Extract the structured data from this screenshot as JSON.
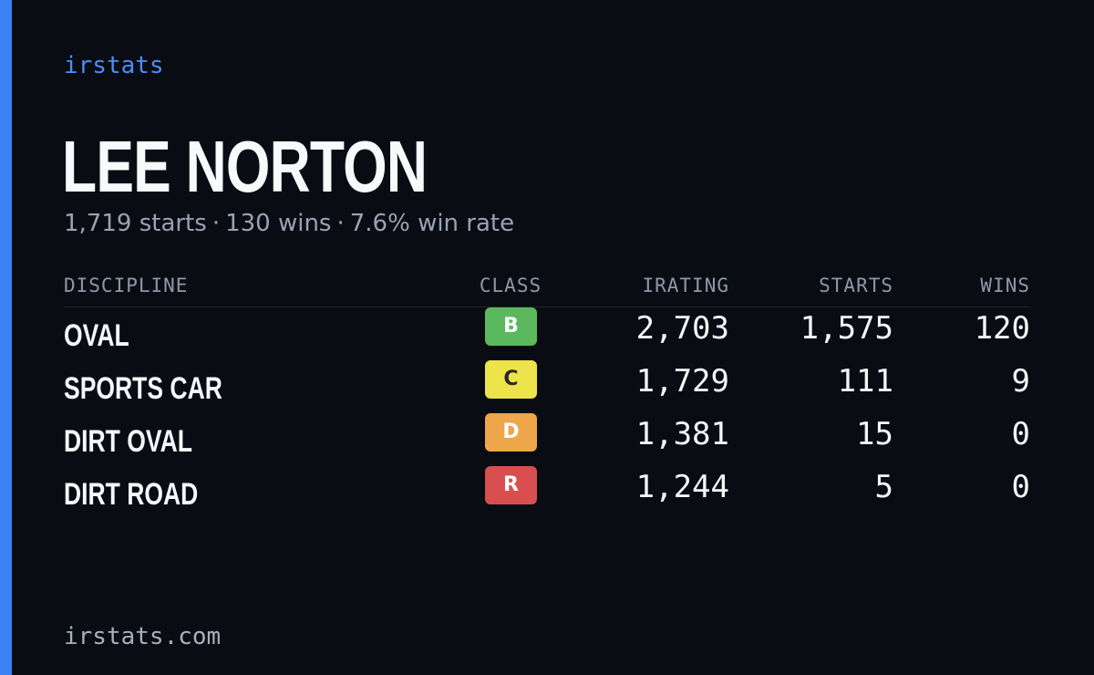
{
  "brand": "irstats",
  "player": {
    "name": "LEE NORTON",
    "starts_text": "1,719 starts",
    "wins_text": "130 wins",
    "win_rate_text": "7.6% win rate",
    "separator": "·"
  },
  "table": {
    "headers": {
      "discipline": "DISCIPLINE",
      "class": "CLASS",
      "irating": "IRATING",
      "starts": "STARTS",
      "wins": "WINS"
    },
    "rows": [
      {
        "discipline": "OVAL",
        "class": "B",
        "class_color": "#5cb85c",
        "class_text_color": "#ffffff",
        "irating": "2,703",
        "starts": "1,575",
        "wins": "120"
      },
      {
        "discipline": "SPORTS CAR",
        "class": "C",
        "class_color": "#ece44a",
        "class_text_color": "#2a2a2a",
        "irating": "1,729",
        "starts": "111",
        "wins": "9"
      },
      {
        "discipline": "DIRT OVAL",
        "class": "D",
        "class_color": "#eda64a",
        "class_text_color": "#ffffff",
        "irating": "1,381",
        "starts": "15",
        "wins": "0"
      },
      {
        "discipline": "DIRT ROAD",
        "class": "R",
        "class_color": "#d94f4f",
        "class_text_color": "#ffffff",
        "irating": "1,244",
        "starts": "5",
        "wins": "0"
      }
    ]
  },
  "footer": "irstats.com",
  "colors": {
    "background": "#0a0c13",
    "accent": "#3b82f6"
  }
}
